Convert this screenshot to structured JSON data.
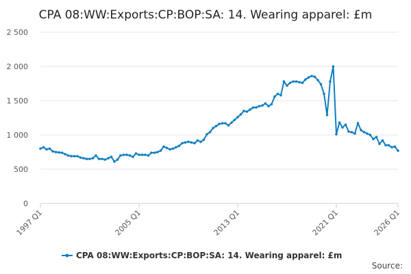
{
  "chart_data": {
    "type": "line",
    "title": "CPA 08:WW:Exports:CP:BOP:SA: 14. Wearing apparel: £m",
    "categories": [
      "1997 Q1",
      null,
      null,
      null,
      null,
      null,
      null,
      null,
      null,
      null,
      null,
      null,
      null,
      null,
      null,
      null,
      null,
      null,
      null,
      null,
      null,
      null,
      null,
      null,
      null,
      null,
      null,
      null,
      null,
      null,
      null,
      null,
      "2005 Q1",
      null,
      null,
      null,
      null,
      null,
      null,
      null,
      null,
      null,
      null,
      null,
      null,
      null,
      null,
      null,
      null,
      null,
      null,
      null,
      null,
      null,
      null,
      null,
      null,
      null,
      null,
      null,
      null,
      null,
      null,
      null,
      "2013 Q1",
      null,
      null,
      null,
      null,
      null,
      null,
      null,
      null,
      null,
      null,
      null,
      null,
      null,
      null,
      null,
      null,
      null,
      null,
      null,
      null,
      null,
      null,
      null,
      null,
      null,
      null,
      null,
      null,
      null,
      null,
      null,
      "2021 Q1",
      null,
      null,
      null,
      null,
      null,
      null,
      null,
      null,
      null,
      null,
      null,
      null,
      null,
      null,
      null,
      null,
      null,
      null,
      null,
      "2026 Q1"
    ],
    "series": [
      {
        "name": "CPA 08:WW:Exports:CP:BOP:SA: 14. Wearing apparel: £m",
        "color": "#0f7dc2",
        "values": [
          800,
          820,
          790,
          800,
          760,
          750,
          745,
          740,
          720,
          700,
          690,
          690,
          690,
          670,
          660,
          650,
          650,
          660,
          700,
          650,
          650,
          640,
          660,
          680,
          610,
          640,
          700,
          710,
          710,
          700,
          680,
          730,
          710,
          710,
          710,
          700,
          740,
          740,
          750,
          770,
          830,
          810,
          790,
          800,
          820,
          840,
          880,
          890,
          900,
          890,
          880,
          920,
          900,
          930,
          1010,
          1040,
          1100,
          1130,
          1160,
          1170,
          1170,
          1140,
          1180,
          1220,
          1260,
          1300,
          1350,
          1340,
          1370,
          1400,
          1400,
          1420,
          1430,
          1460,
          1420,
          1450,
          1560,
          1600,
          1580,
          1780,
          1720,
          1760,
          1780,
          1780,
          1770,
          1760,
          1810,
          1840,
          1860,
          1850,
          1800,
          1740,
          1600,
          1290,
          1780,
          2000,
          1010,
          1180,
          1110,
          1150,
          1050,
          1040,
          1020,
          1170,
          1070,
          1040,
          1020,
          1000,
          940,
          970,
          870,
          920,
          850,
          850,
          820,
          830,
          770
        ]
      }
    ],
    "ylim": [
      0,
      2500
    ],
    "yticks": [
      0,
      500,
      {
        "value": 1000,
        "label": "1 000"
      },
      {
        "value": 1500,
        "label": "1 500"
      },
      {
        "value": 2000,
        "label": "2 000"
      },
      {
        "value": 2500,
        "label": "2 500"
      }
    ],
    "grid": true,
    "legend": "bottom",
    "source": "Source:"
  }
}
